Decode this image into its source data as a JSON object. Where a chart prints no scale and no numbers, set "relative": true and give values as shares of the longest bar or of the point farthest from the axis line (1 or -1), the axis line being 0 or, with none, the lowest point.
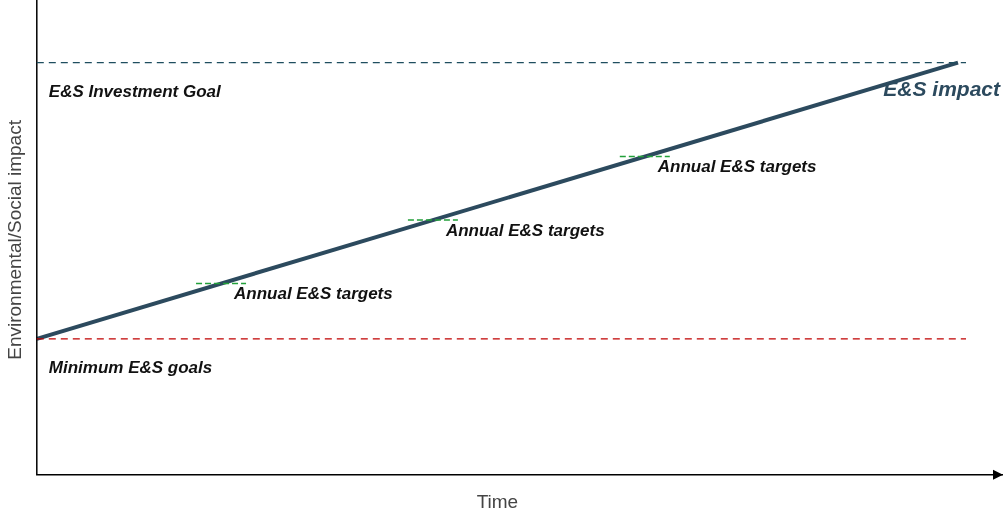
{
  "chart_data": {
    "type": "line",
    "relative": true,
    "xlabel": "Time",
    "ylabel": "Environmental/Social impact",
    "categories": [
      null,
      null
    ],
    "series": [
      {
        "name": "E&S impact",
        "color": "#2c4a5e",
        "values": [
          0.33,
          1
        ]
      }
    ],
    "ref_lines": [
      {
        "axis": "y",
        "value": 1,
        "label": "E&S Investment Goal",
        "color": "#1f4e5f",
        "line_style": "dashed"
      },
      {
        "axis": "y",
        "value": 0.33,
        "label": "Minimum E&S goals",
        "color": "#c00000",
        "line_style": "dashed"
      }
    ],
    "annotations": [
      "Annual E&S targets",
      "Annual E&S targets",
      "Annual E&S targets"
    ],
    "legend": false,
    "marker": "none",
    "line_style": "solid",
    "grid": false
  }
}
